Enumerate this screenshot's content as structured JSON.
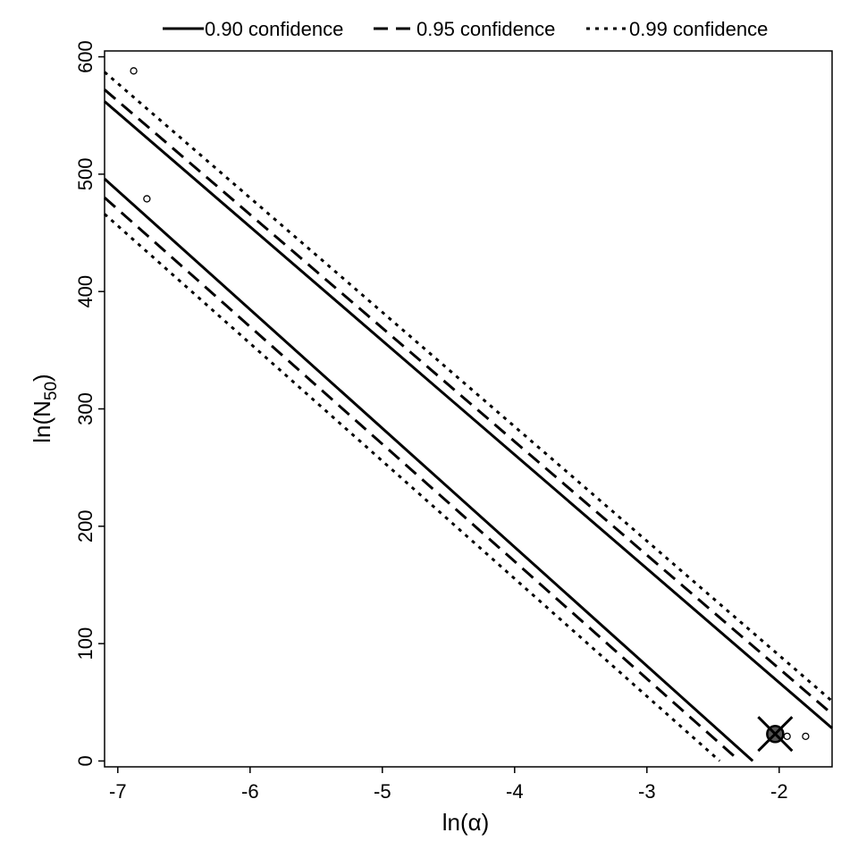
{
  "chart_data": {
    "type": "line",
    "xlabel": "ln(α)",
    "ylabel_main": "ln(N",
    "ylabel_sub": "50",
    "ylabel_close": ")",
    "xlim": [
      -7.1,
      -1.6
    ],
    "ylim": [
      -5,
      605
    ],
    "x_ticks": [
      -7,
      -6,
      -5,
      -4,
      -3,
      -2
    ],
    "x_tick_labels": [
      "-7",
      "-6",
      "-5",
      "-4",
      "-3",
      "-2"
    ],
    "y_ticks": [
      0,
      100,
      200,
      300,
      400,
      500,
      600
    ],
    "y_tick_labels": [
      "0",
      "100",
      "200",
      "300",
      "400",
      "500",
      "600"
    ],
    "legend_position": "top",
    "legend": [
      "0.90 confidence",
      "0.95 confidence",
      "0.99 confidence"
    ],
    "series": [
      {
        "name": "0.90 confidence",
        "style": "solid",
        "lines": [
          {
            "x": [
              -7.1,
              -1.6
            ],
            "y": [
              562,
              28
            ]
          },
          {
            "x": [
              -7.1,
              -2.2
            ],
            "y": [
              496,
              0
            ]
          }
        ]
      },
      {
        "name": "0.95 confidence",
        "style": "dashed",
        "lines": [
          {
            "x": [
              -7.1,
              -1.6
            ],
            "y": [
              572,
              40
            ]
          },
          {
            "x": [
              -7.1,
              -2.3
            ],
            "y": [
              480,
              0
            ]
          }
        ]
      },
      {
        "name": "0.99 confidence",
        "style": "dotted",
        "lines": [
          {
            "x": [
              -7.1,
              -1.6
            ],
            "y": [
              587,
              51
            ]
          },
          {
            "x": [
              -7.1,
              -2.45
            ],
            "y": [
              466,
              0
            ]
          }
        ]
      }
    ],
    "points": [
      {
        "x": -6.88,
        "y": 588
      },
      {
        "x": -6.78,
        "y": 479
      },
      {
        "x": -1.94,
        "y": 21
      },
      {
        "x": -1.8,
        "y": 21
      }
    ],
    "estimate": {
      "x": -2.03,
      "y": 23
    }
  }
}
